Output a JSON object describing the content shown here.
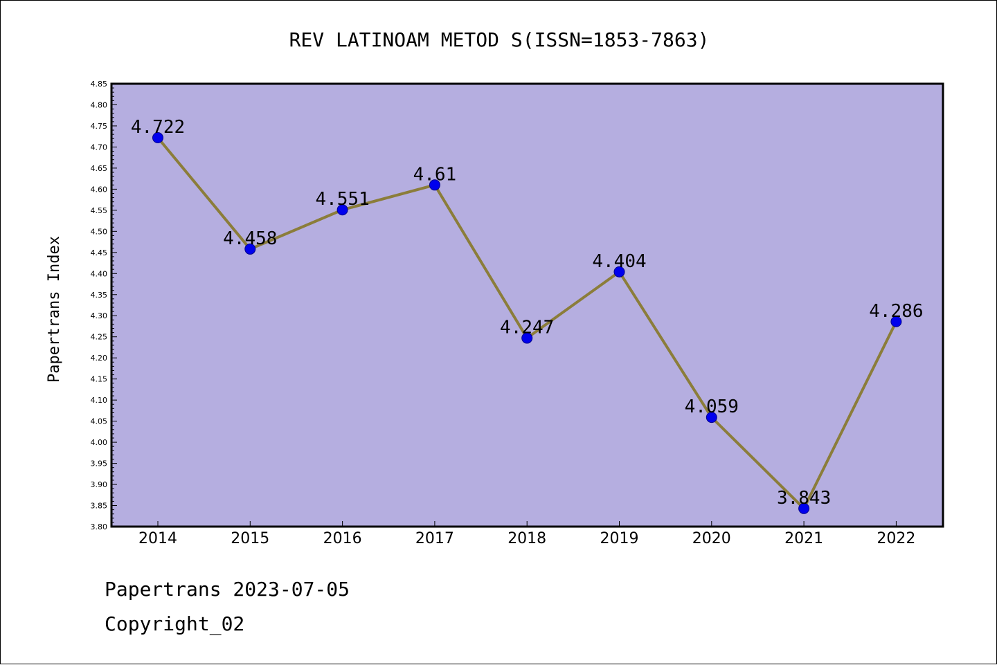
{
  "chart_data": {
    "type": "line",
    "title": "REV LATINOAM METOD S(ISSN=1853-7863)",
    "xlabel": "",
    "ylabel": "Papertrans Index",
    "categories": [
      "2014",
      "2015",
      "2016",
      "2017",
      "2018",
      "2019",
      "2020",
      "2021",
      "2022"
    ],
    "series": [
      {
        "values": [
          4.722,
          4.458,
          4.551,
          4.61,
          4.247,
          4.404,
          4.059,
          3.843,
          4.286
        ],
        "labels": [
          "4.722",
          "4.458",
          "4.551",
          "4.61",
          "4.247",
          "4.404",
          "4.059",
          "3.843",
          "4.286"
        ],
        "line_color": "#8b7d3a",
        "marker_color": "#0000ee"
      }
    ],
    "ylim": [
      3.8,
      4.85
    ],
    "yticks": [
      "3.80",
      "3.85",
      "3.90",
      "3.95",
      "4.00",
      "4.05",
      "4.10",
      "4.15",
      "4.20",
      "4.25",
      "4.30",
      "4.35",
      "4.40",
      "4.45",
      "4.50",
      "4.55",
      "4.60",
      "4.65",
      "4.70",
      "4.75",
      "4.80",
      "4.85"
    ],
    "plot_background": "#b5aee0",
    "grid": false,
    "legend": "none"
  },
  "footer": {
    "line1": "Papertrans 2023-07-05",
    "line2": "Copyright_02"
  }
}
